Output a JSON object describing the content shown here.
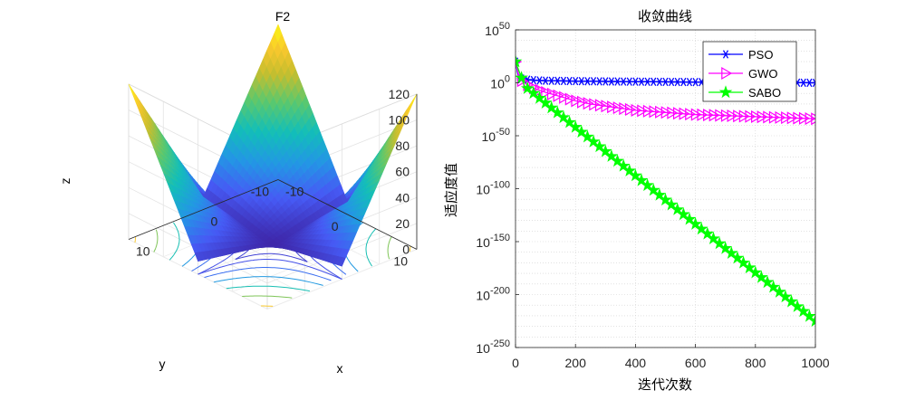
{
  "chart_data": [
    {
      "type": "surface3d",
      "title": "F2",
      "xlabel": "x",
      "ylabel": "y",
      "zlabel": "z",
      "x_range": [
        -10,
        10
      ],
      "y_range": [
        -10,
        10
      ],
      "z_range": [
        0,
        120
      ],
      "x_ticks": [
        "-10",
        "0",
        "10"
      ],
      "y_ticks": [
        "-10",
        "0",
        "10"
      ],
      "z_ticks": [
        "0",
        "20",
        "40",
        "60",
        "80",
        "100",
        "120"
      ],
      "function": "sum(|x_i|) + prod(|x_i|)",
      "corner_value": 120,
      "colormap": "parula",
      "contour_levels": [
        5,
        10,
        20,
        35,
        55,
        80,
        110
      ]
    },
    {
      "type": "line",
      "title": "收敛曲线",
      "xlabel": "迭代次数",
      "ylabel": "适应度值",
      "yscale": "log",
      "xlim": [
        0,
        1000
      ],
      "ylim_exponent": [
        -250,
        50
      ],
      "x_ticks": [
        "0",
        "200",
        "400",
        "600",
        "800",
        "1000"
      ],
      "y_ticks_base": "10",
      "y_ticks_exp": [
        "50",
        "0",
        "-50",
        "-100",
        "-150",
        "-200",
        "-250"
      ],
      "legend_position": "top-right",
      "series": [
        {
          "name": "PSO",
          "color": "#0000ff",
          "marker": "asterisk",
          "x": [
            0,
            10,
            20,
            40,
            60,
            80,
            100,
            150,
            200,
            300,
            400,
            500,
            600,
            700,
            800,
            900,
            1000
          ],
          "log10_y": [
            20,
            5,
            4,
            3,
            2.5,
            2.2,
            2,
            1.8,
            1.6,
            1.3,
            1.1,
            0.9,
            0.7,
            0.5,
            0.4,
            0.2,
            0
          ]
        },
        {
          "name": "GWO",
          "color": "#ff00ff",
          "marker": "triangle-right",
          "x": [
            0,
            10,
            20,
            40,
            60,
            80,
            100,
            150,
            200,
            250,
            300,
            400,
            500,
            600,
            700,
            800,
            900,
            1000
          ],
          "log10_y": [
            20,
            8,
            2,
            -2,
            -5,
            -7,
            -9,
            -13,
            -17,
            -20,
            -22,
            -26,
            -28,
            -30,
            -31,
            -32,
            -33,
            -34
          ]
        },
        {
          "name": "SABO",
          "color": "#00ff00",
          "marker": "pentagram",
          "x": [
            0,
            30,
            1000
          ],
          "log10_y": [
            20,
            -3,
            -225
          ]
        }
      ]
    }
  ]
}
